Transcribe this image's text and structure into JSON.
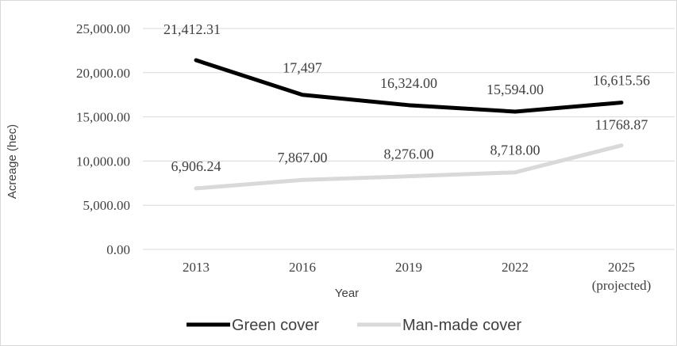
{
  "chart_data": {
    "type": "line",
    "categories": [
      "2013",
      "2016",
      "2019",
      "2022",
      "2025"
    ],
    "category_sublabels": [
      "",
      "",
      "",
      "",
      "(projected)"
    ],
    "xlabel": "Year",
    "ylabel": "Acreage (hec)",
    "ylim": [
      0,
      25000
    ],
    "yticks": [
      0,
      5000,
      10000,
      15000,
      20000,
      25000
    ],
    "ytick_labels": [
      "0.00",
      "5,000.00",
      "10,000.00",
      "15,000.00",
      "20,000.00",
      "25,000.00"
    ],
    "grid": true,
    "legend_position": "bottom",
    "series": [
      {
        "name": "Green cover",
        "color": "#000000",
        "values": [
          21412.31,
          17497,
          16324,
          15594,
          16615.56
        ],
        "labels": [
          "21,412.31",
          "17,497",
          "16,324.00",
          "15,594.00",
          "16,615.56"
        ]
      },
      {
        "name": "Man-made cover",
        "color": "#d9d9d9",
        "values": [
          6906.24,
          7867,
          8276,
          8718,
          11768.87
        ],
        "labels": [
          "6,906.24",
          "7,867.00",
          "8,276.00",
          "8,718.00",
          "11768.87"
        ]
      }
    ]
  }
}
